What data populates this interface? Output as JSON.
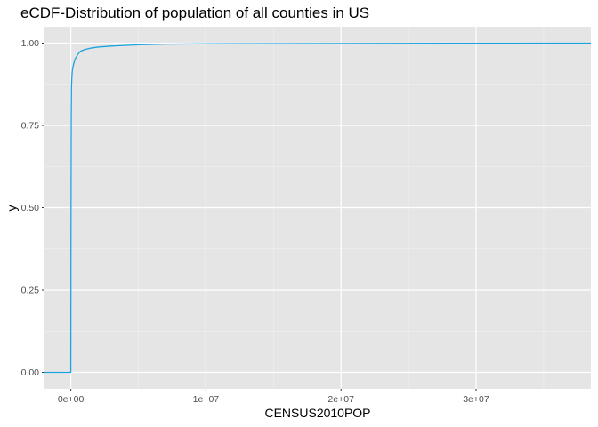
{
  "chart_data": {
    "type": "line",
    "title": "eCDF-Distribution of population of all counties in US",
    "xlabel": "CENSUS2010POP",
    "ylabel": "y",
    "xlim": [
      -1950000,
      38500000
    ],
    "ylim": [
      -0.05,
      1.05
    ],
    "x_ticks": [
      0,
      10000000,
      20000000,
      30000000
    ],
    "x_tick_labels": [
      "0e+00",
      "1e+07",
      "2e+07",
      "3e+07"
    ],
    "y_ticks": [
      0,
      0.25,
      0.5,
      0.75,
      1.0
    ],
    "y_tick_labels": [
      "0.00",
      "0.25",
      "0.50",
      "0.75",
      "1.00"
    ],
    "grid": true,
    "series": [
      {
        "color": "#1aa3e0",
        "x": [
          -1950000,
          82,
          82,
          5000,
          10000,
          20000,
          30000,
          50000,
          80000,
          120000,
          200000,
          300000,
          500000,
          700000,
          1000000,
          1500000,
          2000000,
          3000000,
          4000000,
          5000000,
          7000000,
          10000000,
          20000000,
          38500000
        ],
        "y": [
          0,
          0,
          0.02,
          0.2,
          0.4,
          0.62,
          0.78,
          0.87,
          0.9,
          0.92,
          0.935,
          0.95,
          0.965,
          0.975,
          0.98,
          0.985,
          0.988,
          0.991,
          0.993,
          0.995,
          0.997,
          0.998,
          0.999,
          1.0
        ]
      }
    ]
  }
}
